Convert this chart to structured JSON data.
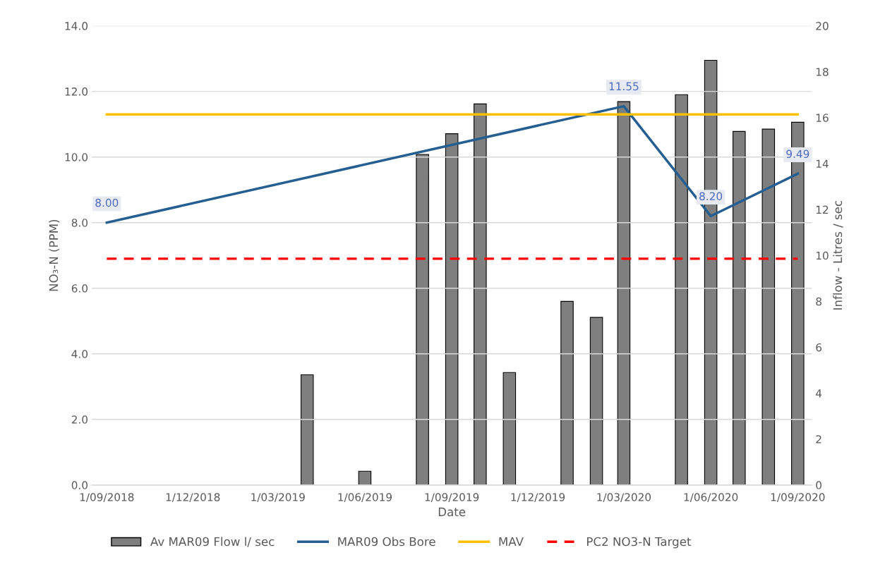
{
  "chart_data": {
    "type": "bar",
    "xlabel": "Date",
    "ylabel": "NO₃-N (PPM)",
    "y2label": "Inflow - Litres / sec",
    "xlim": [
      "2018-08-16",
      "2020-09-16"
    ],
    "xticks": [
      {
        "value": "2018-09-01",
        "label": "1/09/2018"
      },
      {
        "value": "2018-12-01",
        "label": "1/12/2018"
      },
      {
        "value": "2019-03-01",
        "label": "1/03/2019"
      },
      {
        "value": "2019-06-01",
        "label": "1/06/2019"
      },
      {
        "value": "2019-09-01",
        "label": "1/09/2019"
      },
      {
        "value": "2019-12-01",
        "label": "1/12/2019"
      },
      {
        "value": "2020-03-01",
        "label": "1/03/2020"
      },
      {
        "value": "2020-06-01",
        "label": "1/06/2020"
      },
      {
        "value": "2020-09-01",
        "label": "1/09/2020"
      }
    ],
    "ylim": [
      0,
      14
    ],
    "yticks": [
      {
        "value": 0,
        "label": "0.0"
      },
      {
        "value": 2,
        "label": "2.0"
      },
      {
        "value": 4,
        "label": "4.0"
      },
      {
        "value": 6,
        "label": "6.0"
      },
      {
        "value": 8,
        "label": "8.0"
      },
      {
        "value": 10,
        "label": "10.0"
      },
      {
        "value": 12,
        "label": "12.0"
      },
      {
        "value": 14,
        "label": "14.0"
      }
    ],
    "y2lim": [
      0,
      20
    ],
    "y2ticks": [
      0,
      2,
      4,
      6,
      8,
      10,
      12,
      14,
      16,
      18,
      20
    ],
    "grid": "y",
    "legend": "bottom",
    "series": [
      {
        "name": "Av MAR09 Flow l/ sec",
        "axis": "y2",
        "color": "#7f7f7f",
        "x": [
          "2019-04-01",
          "2019-06-01",
          "2019-08-01",
          "2019-09-01",
          "2019-10-01",
          "2019-11-01",
          "2020-01-01",
          "2020-02-01",
          "2020-03-01",
          "2020-05-01",
          "2020-06-01",
          "2020-07-01",
          "2020-08-01",
          "2020-09-01"
        ],
        "values": [
          4.8,
          0.6,
          14.4,
          15.3,
          16.6,
          4.9,
          8.0,
          7.3,
          16.7,
          17.0,
          18.5,
          15.4,
          15.5,
          15.8
        ]
      },
      {
        "name": "MAR09 Obs Bore",
        "type": "line",
        "color": "#255e91",
        "x": [
          "2018-09-01",
          "2020-03-01",
          "2020-06-01",
          "2020-09-01"
        ],
        "values": [
          8.0,
          11.55,
          8.2,
          9.49
        ],
        "value_labels": [
          "8.00",
          "11.55",
          "8.20",
          "9.49"
        ]
      },
      {
        "name": "MAV",
        "type": "line",
        "color": "#ffc000",
        "x": [
          "2018-09-01",
          "2020-09-01"
        ],
        "values": [
          11.3,
          11.3
        ]
      },
      {
        "name": "PC2 NO3-N Target",
        "type": "line",
        "color": "#ff0000",
        "line_style": "dashed",
        "x": [
          "2018-09-01",
          "2020-09-01"
        ],
        "values": [
          6.9,
          6.9
        ]
      }
    ]
  }
}
